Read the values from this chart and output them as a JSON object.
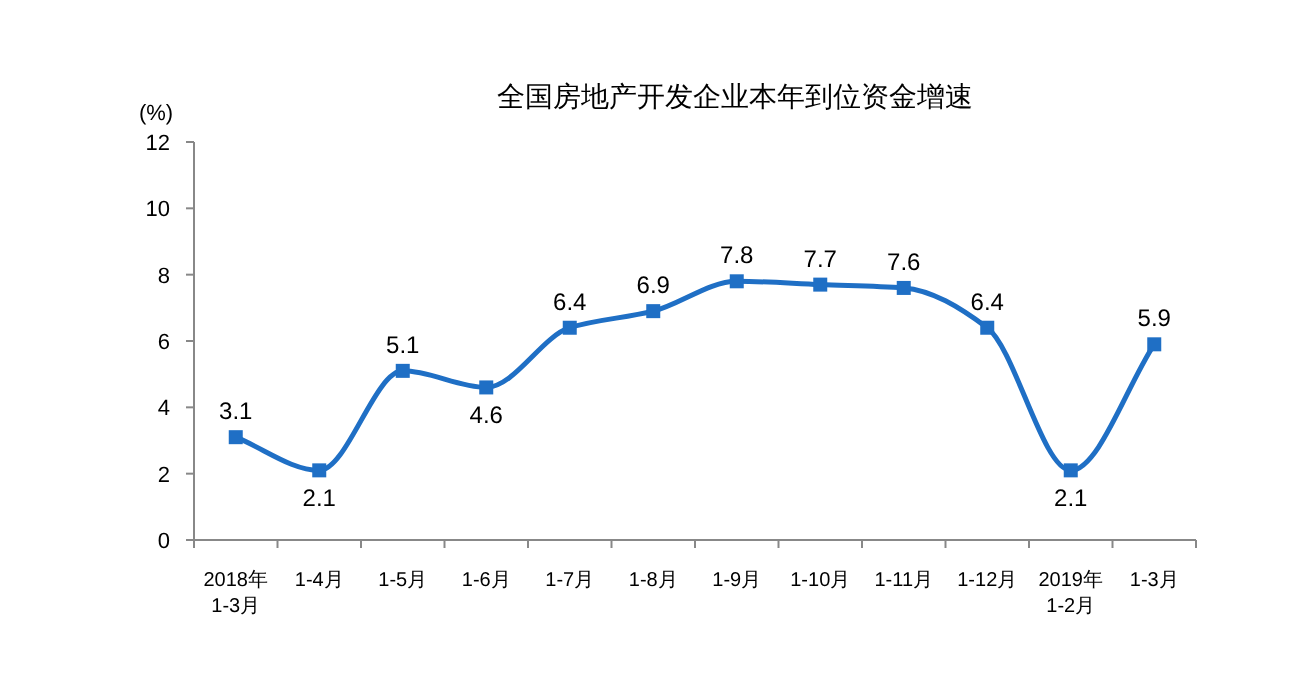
{
  "chart_data": {
    "type": "line",
    "title": "全国房地产开发企业本年到位资金增速",
    "ylabel": "(%)",
    "categories": [
      "2018年\n1-3月",
      "1-4月",
      "1-5月",
      "1-6月",
      "1-7月",
      "1-8月",
      "1-9月",
      "1-10月",
      "1-11月",
      "1-12月",
      "2019年\n1-2月",
      "1-3月"
    ],
    "series": [
      {
        "color": "#1f6fc5",
        "values": [
          3.1,
          2.1,
          5.1,
          4.6,
          6.4,
          6.9,
          7.8,
          7.7,
          7.6,
          6.4,
          2.1,
          5.9
        ]
      }
    ],
    "ylim": [
      0,
      12
    ],
    "yticks": [
      0,
      2,
      4,
      6,
      8,
      10,
      12
    ],
    "marker": "square",
    "line_style": "solid",
    "data_labels": true,
    "grid": false
  }
}
